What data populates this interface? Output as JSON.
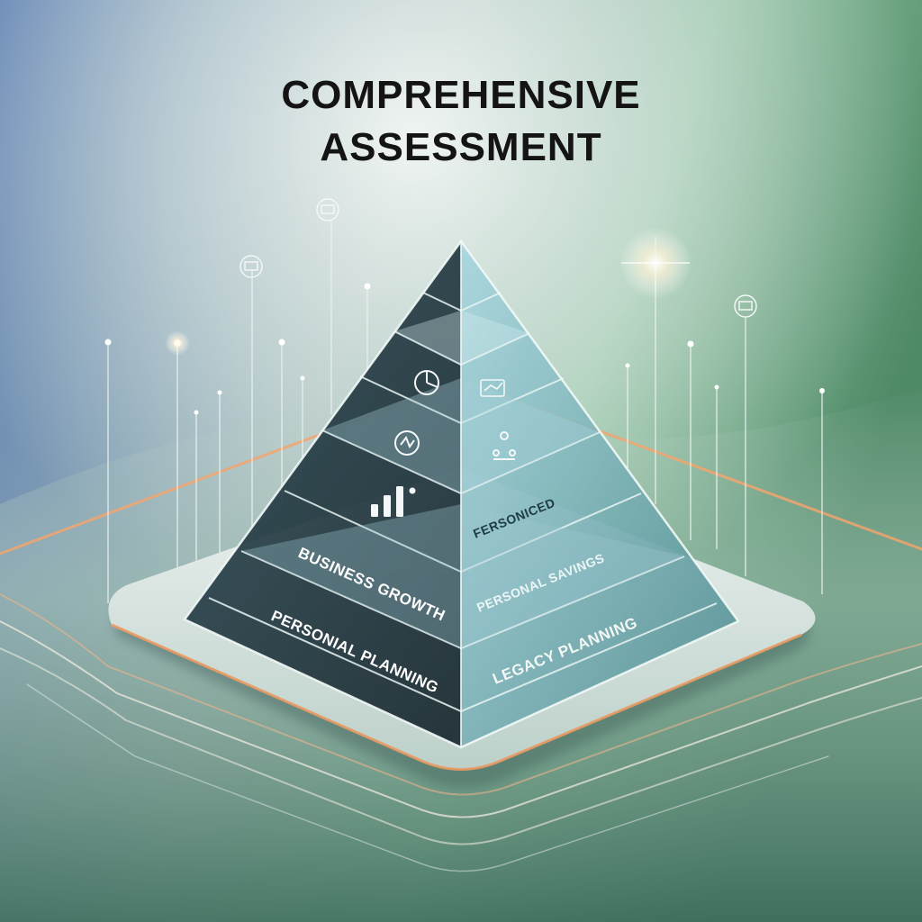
{
  "title": {
    "line1": "COMPREHENSIVE",
    "line2": "ASSESSMENT"
  },
  "pyramid": {
    "labels": {
      "left_bottom": "PERSONIAL PLANNING",
      "left_second": "BUSINESS GROWTH",
      "right_bottom": "LEGACY PLANNING",
      "right_second": "PERSONAL SAVINGS",
      "right_third": "FERSONICED"
    },
    "icons": [
      "bar-chart-icon",
      "refresh-cycle-icon",
      "pie-chart-icon",
      "people-network-icon",
      "document-chart-icon"
    ]
  },
  "floating_icons": [
    "sensor-node-icon",
    "sensor-node-icon",
    "sensor-node-icon"
  ],
  "colors": {
    "bg_blue": "#5f82b4",
    "bg_green": "#6fa885",
    "glow_orange": "#f3a56f",
    "pyramid_dark": "#1d2f35",
    "pyramid_light": "#9fd3dc"
  }
}
